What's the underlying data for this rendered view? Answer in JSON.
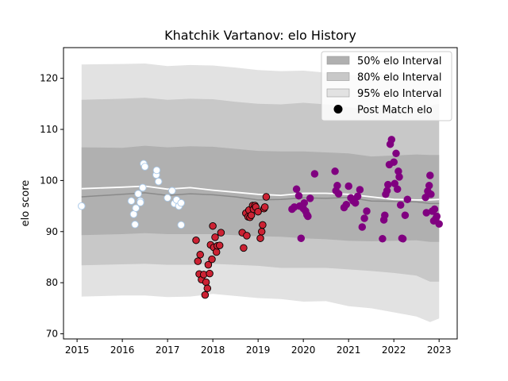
{
  "chart_data": {
    "type": "scatter",
    "title": "Khatchik Vartanov: elo History",
    "xlabel": "",
    "ylabel": "elo score",
    "xlim": [
      2014.7,
      2023.4
    ],
    "ylim": [
      69.0,
      126.0
    ],
    "x_ticks": [
      2015,
      2016,
      2017,
      2018,
      2019,
      2020,
      2021,
      2022,
      2023
    ],
    "y_ticks": [
      70,
      80,
      90,
      100,
      110,
      120
    ],
    "grid": false,
    "legend_position": "top-right",
    "legend": [
      {
        "label": "50% elo Interval",
        "kind": "band",
        "color": "#b0b0b0"
      },
      {
        "label": "80% elo Interval",
        "kind": "band",
        "color": "#c8c8c8"
      },
      {
        "label": "95% elo Interval",
        "kind": "band",
        "color": "#e2e2e2"
      },
      {
        "label": "Post Match elo",
        "kind": "marker",
        "color": "#000000"
      }
    ],
    "colors": {
      "band50": "#b0b0b0",
      "band80": "#c8c8c8",
      "band95": "#e2e2e2",
      "mean_line": "#8a8a8a",
      "median_line": "#ffffff",
      "early": "#ffffff",
      "early_edge": "#a8c8e8",
      "mid": "#cc2233",
      "late": "#800080"
    },
    "bands": {
      "x": [
        2015.1,
        2016.0,
        2016.5,
        2017.0,
        2017.5,
        2018.0,
        2018.5,
        2019.0,
        2019.5,
        2020.0,
        2020.5,
        2021.0,
        2021.5,
        2022.0,
        2022.5,
        2022.8,
        2023.0
      ],
      "p95_low": [
        77.3,
        77.5,
        77.5,
        77.2,
        77.3,
        77.8,
        77.4,
        77.0,
        76.8,
        76.3,
        76.4,
        75.4,
        75.0,
        74.2,
        73.4,
        72.3,
        73.0
      ],
      "p95_high": [
        122.7,
        122.8,
        122.9,
        122.4,
        122.6,
        122.5,
        122.1,
        121.6,
        121.4,
        121.5,
        121.1,
        120.6,
        120.6,
        120.6,
        121.0,
        121.1,
        122.0
      ],
      "p80_low": [
        83.4,
        83.6,
        83.7,
        83.5,
        83.5,
        83.7,
        83.5,
        83.3,
        82.9,
        82.9,
        82.9,
        82.6,
        82.3,
        81.9,
        81.4,
        80.2,
        80.2
      ],
      "p80_high": [
        115.8,
        116.0,
        116.2,
        115.8,
        116.0,
        115.9,
        115.4,
        115.0,
        114.9,
        115.2,
        114.9,
        114.3,
        113.9,
        114.2,
        114.5,
        114.6,
        115.0
      ],
      "p50_low": [
        89.3,
        89.5,
        89.7,
        89.5,
        89.5,
        89.5,
        89.3,
        89.1,
        89.0,
        88.7,
        88.5,
        88.2,
        88.1,
        88.2,
        88.3,
        88.0,
        88.0
      ],
      "p50_high": [
        106.5,
        106.4,
        106.8,
        106.5,
        106.7,
        106.6,
        106.2,
        105.8,
        105.7,
        105.7,
        105.5,
        105.3,
        104.7,
        104.9,
        105.1,
        105.0,
        105.0
      ],
      "mean": [
        96.8,
        97.3,
        97.6,
        97.1,
        97.4,
        97.2,
        96.8,
        96.2,
        96.3,
        96.6,
        96.5,
        96.7,
        96.0,
        95.9,
        95.8,
        95.5,
        95.5
      ],
      "median": [
        98.4,
        98.7,
        98.9,
        98.3,
        98.6,
        98.1,
        97.7,
        97.3,
        97.1,
        97.5,
        97.5,
        97.3,
        96.8,
        96.3,
        96.2,
        96.2,
        96.3
      ]
    },
    "series": [
      {
        "group": "2015-2017",
        "x": [
          2015.1,
          2016.2,
          2016.25,
          2016.28,
          2016.3,
          2016.35,
          2016.4,
          2016.4,
          2016.45,
          2016.47,
          2016.5,
          2016.75,
          2016.76,
          2016.8,
          2017.0,
          2017.1,
          2017.15,
          2017.2,
          2017.25,
          2017.3,
          2017.3
        ],
        "y": [
          95.0,
          96.0,
          93.4,
          91.4,
          94.6,
          97.4,
          96.0,
          95.7,
          98.6,
          103.3,
          102.7,
          101.1,
          102.0,
          99.8,
          96.6,
          98.0,
          95.5,
          96.2,
          95.0,
          95.6,
          91.3
        ]
      },
      {
        "group": "2017-2019",
        "x": [
          2017.63,
          2017.67,
          2017.7,
          2017.72,
          2017.75,
          2017.8,
          2017.83,
          2017.85,
          2017.88,
          2017.9,
          2017.93,
          2017.95,
          2017.98,
          2018.0,
          2018.02,
          2018.05,
          2018.08,
          2018.1,
          2018.15,
          2018.18,
          2018.65,
          2018.68,
          2018.73,
          2018.75,
          2018.78,
          2018.8,
          2018.82,
          2018.85,
          2018.88,
          2018.9,
          2018.93,
          2018.95,
          2019.0,
          2019.05,
          2019.08,
          2019.1,
          2019.13,
          2019.15,
          2019.18
        ],
        "y": [
          88.3,
          84.2,
          81.7,
          85.5,
          80.6,
          81.6,
          77.6,
          80.1,
          78.9,
          83.5,
          81.8,
          87.4,
          84.6,
          91.1,
          86.9,
          88.9,
          86.0,
          87.2,
          87.3,
          89.8,
          89.8,
          86.8,
          93.6,
          89.2,
          92.9,
          94.2,
          92.8,
          93.2,
          95.1,
          94.4,
          95.1,
          94.8,
          93.9,
          88.7,
          90.0,
          91.3,
          94.5,
          94.8,
          96.8
        ]
      },
      {
        "group": "2019-2023",
        "x": [
          2019.75,
          2019.8,
          2019.85,
          2019.9,
          2019.92,
          2019.95,
          2020.0,
          2020.02,
          2020.05,
          2020.08,
          2020.1,
          2020.15,
          2020.25,
          2020.7,
          2020.72,
          2020.75,
          2020.78,
          2020.9,
          2020.95,
          2021.0,
          2021.05,
          2021.1,
          2021.15,
          2021.2,
          2021.25,
          2021.3,
          2021.35,
          2021.4,
          2021.75,
          2021.78,
          2021.8,
          2021.82,
          2021.85,
          2021.87,
          2021.9,
          2021.92,
          2021.95,
          2022.0,
          2022.02,
          2022.05,
          2022.08,
          2022.1,
          2022.12,
          2022.15,
          2022.18,
          2022.2,
          2022.25,
          2022.3,
          2022.7,
          2022.72,
          2022.75,
          2022.78,
          2022.8,
          2022.82,
          2022.85,
          2022.88,
          2022.9,
          2022.93,
          2022.95,
          2023.0
        ],
        "y": [
          94.4,
          94.8,
          98.3,
          97.0,
          95.0,
          88.7,
          94.5,
          95.6,
          94.0,
          93.3,
          93.0,
          96.5,
          101.3,
          101.8,
          98.0,
          99.0,
          97.4,
          94.7,
          95.3,
          98.9,
          96.6,
          96.0,
          95.6,
          96.9,
          98.2,
          90.9,
          92.6,
          94.0,
          88.6,
          92.3,
          93.2,
          97.3,
          98.0,
          99.2,
          103.1,
          107.1,
          108.0,
          103.6,
          99.4,
          105.3,
          98.3,
          101.8,
          100.7,
          95.2,
          88.7,
          88.6,
          93.2,
          96.3,
          96.7,
          93.7,
          97.9,
          99.0,
          101.0,
          97.3,
          94.0,
          92.1,
          94.4,
          92.6,
          93.0,
          91.5
        ]
      }
    ]
  }
}
